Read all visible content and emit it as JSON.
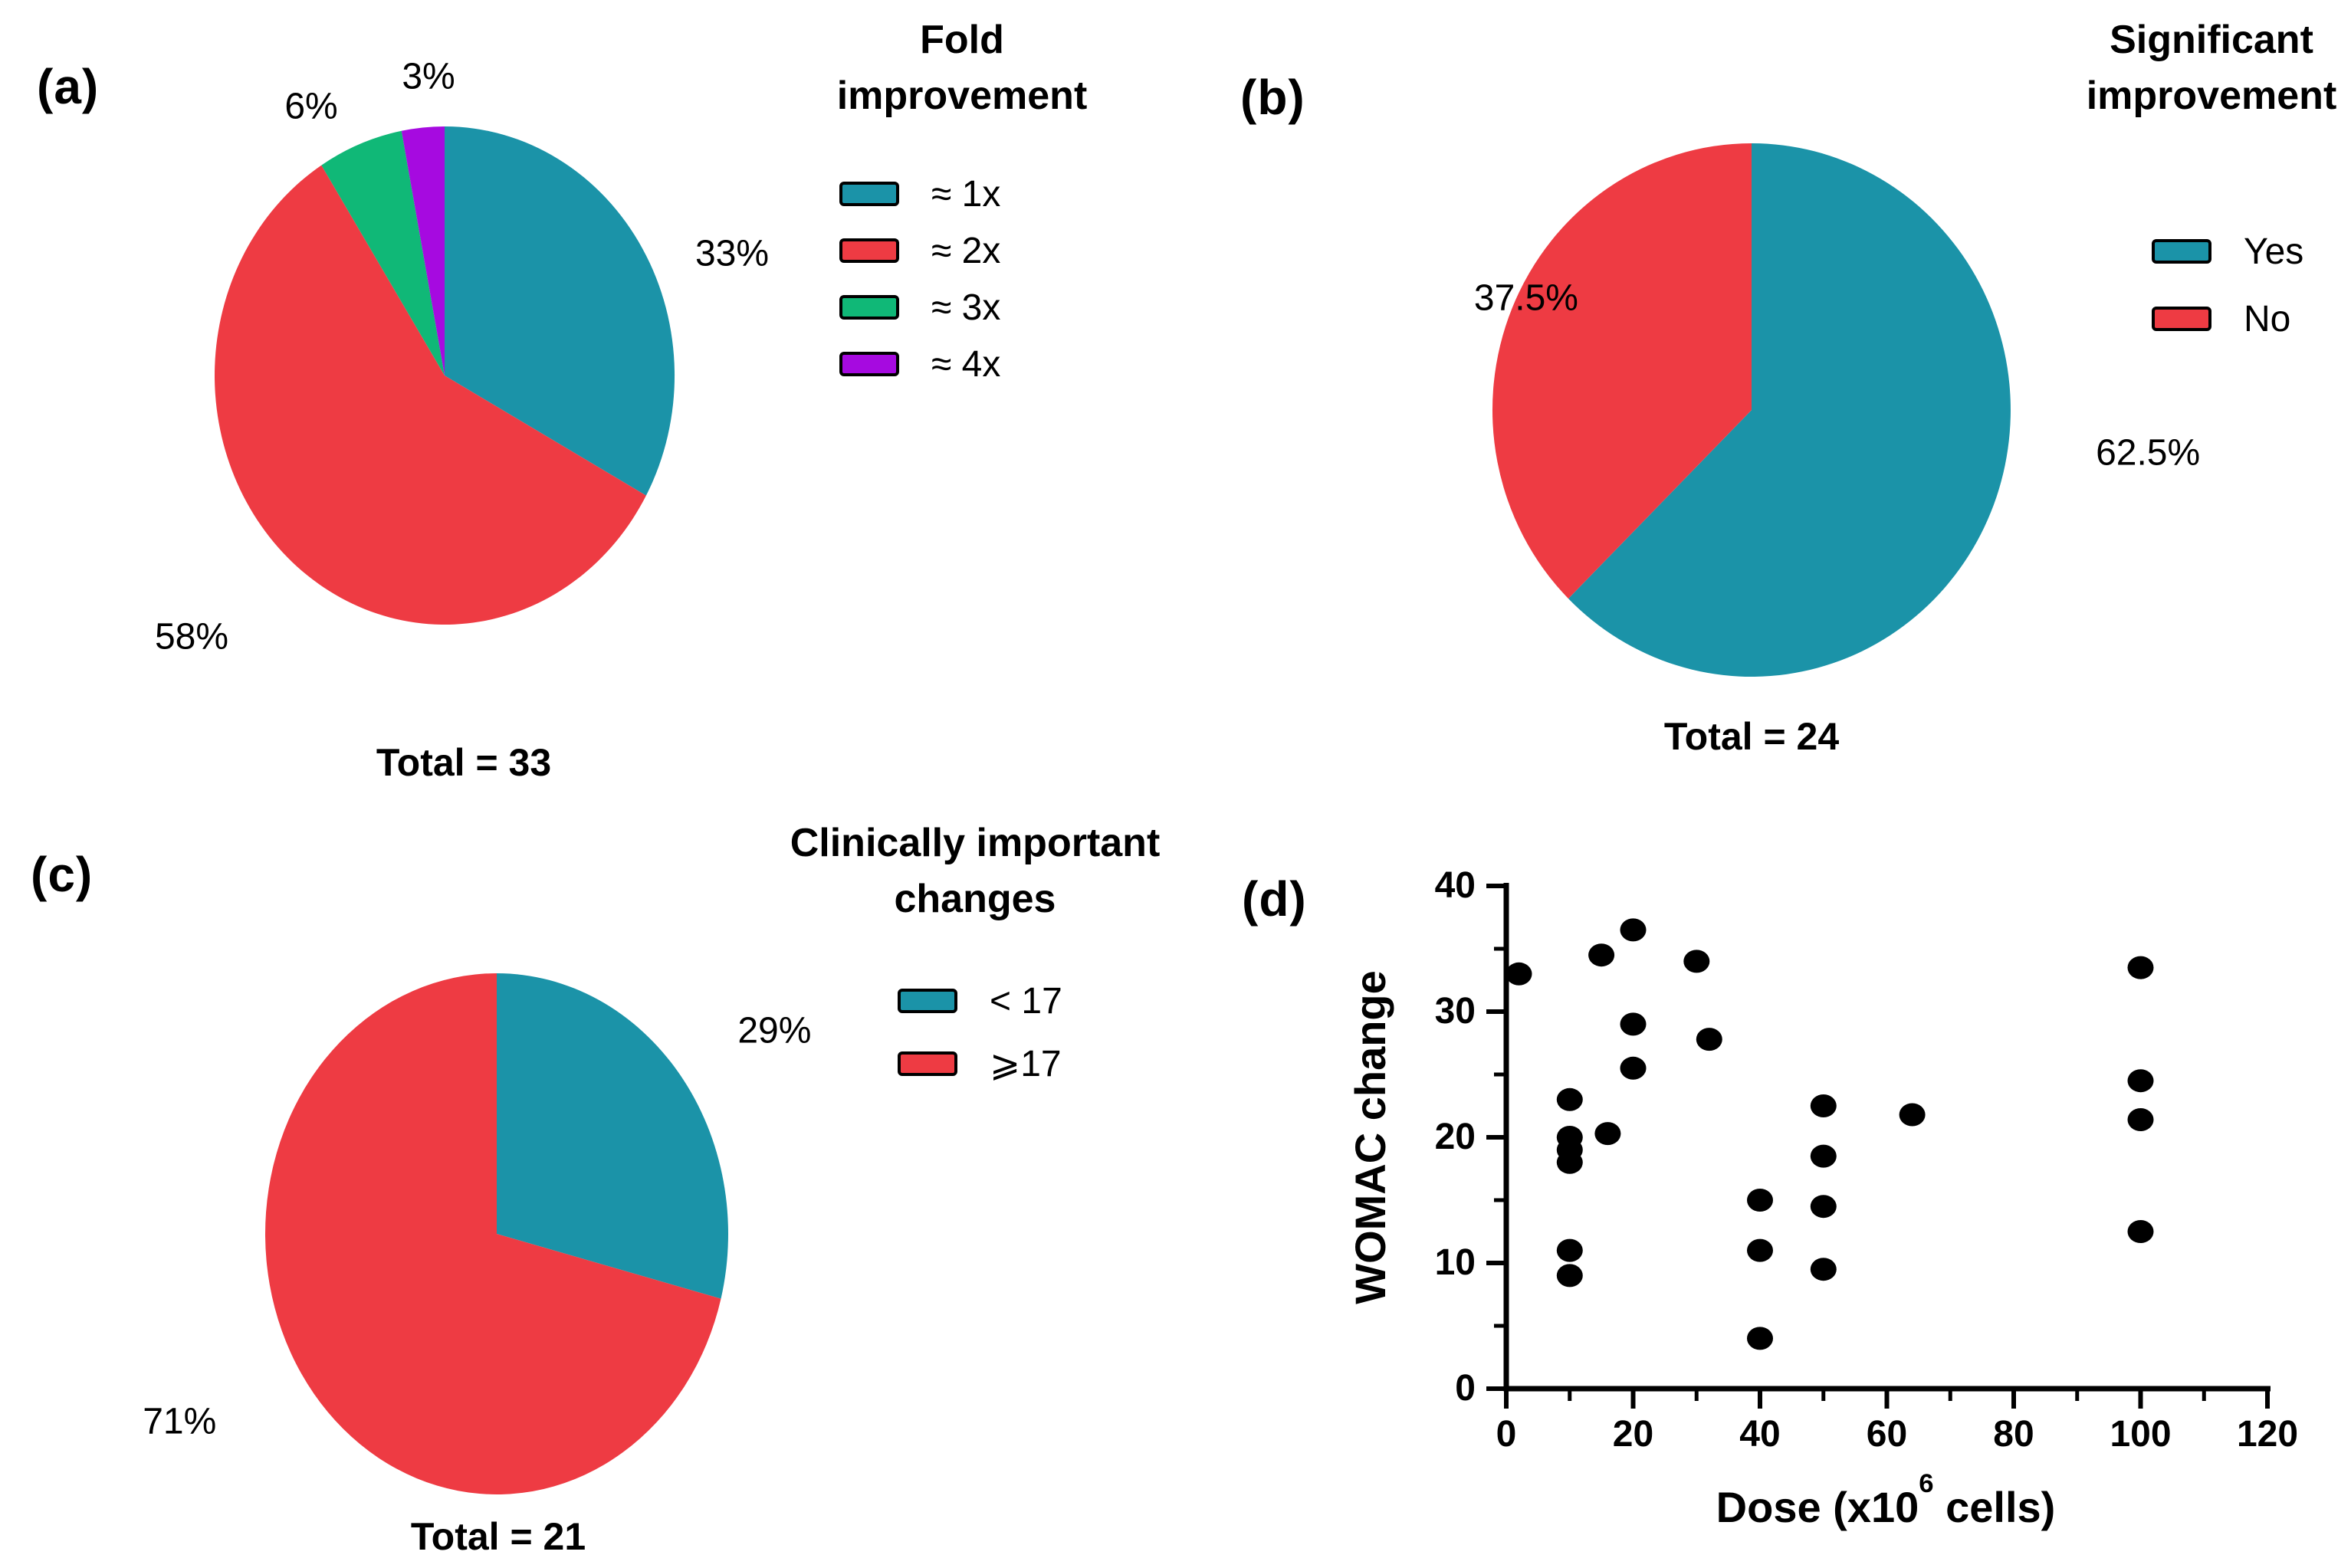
{
  "figure_background": "#ffffff",
  "palette": {
    "teal": "#1b93a8",
    "red": "#ee3b43",
    "green": "#10b877",
    "purple": "#a60ae0",
    "black": "#000000"
  },
  "chart_data": [
    {
      "id": "a",
      "panel_label": "(a)",
      "type": "pie",
      "legend_title": "Fold improvement",
      "legend_title_lines": [
        "Fold",
        "improvement"
      ],
      "legend_position": "top-right",
      "total_label": "Total = 33",
      "total": 33,
      "slices": [
        {
          "legend": "≈ 1x",
          "value": 33,
          "label": "33%",
          "color": "#1b93a8"
        },
        {
          "legend": "≈ 2x",
          "value": 58,
          "label": "58%",
          "color": "#ee3b43"
        },
        {
          "legend": "≈ 3x",
          "value": 6,
          "label": "6%",
          "color": "#10b877"
        },
        {
          "legend": "≈ 4x",
          "value": 3,
          "label": "3%",
          "color": "#a60ae0"
        }
      ]
    },
    {
      "id": "b",
      "panel_label": "(b)",
      "type": "pie",
      "legend_title": "Significant improvement",
      "legend_title_lines": [
        "Significant",
        "improvement"
      ],
      "legend_position": "top-right",
      "total_label": "Total = 24",
      "total": 24,
      "slices": [
        {
          "legend": "Yes",
          "value": 62.5,
          "label": "62.5%",
          "color": "#1b93a8"
        },
        {
          "legend": "No",
          "value": 37.5,
          "label": "37.5%",
          "color": "#ee3b43"
        }
      ]
    },
    {
      "id": "c",
      "panel_label": "(c)",
      "type": "pie",
      "legend_title": "Clinically important changes",
      "legend_title_lines": [
        "Clinically important",
        "changes"
      ],
      "legend_position": "top-right",
      "total_label": "Total = 21",
      "total": 21,
      "slices": [
        {
          "legend": "< 17",
          "value": 29,
          "label": "29%",
          "color": "#1b93a8"
        },
        {
          "legend": "⩾17",
          "value": 71,
          "label": "71%",
          "color": "#ee3b43"
        }
      ]
    },
    {
      "id": "d",
      "panel_label": "(d)",
      "type": "scatter",
      "xlabel": "Dose (x10^6 cells)",
      "xlabel_parts": [
        "Dose (x10",
        "6",
        " cells)"
      ],
      "ylabel": "WOMAC change",
      "xlim": [
        0,
        120
      ],
      "ylim": [
        0,
        40
      ],
      "x_major_ticks": [
        0,
        20,
        40,
        60,
        80,
        100,
        120
      ],
      "x_minor_ticks": [
        10,
        30,
        50,
        70,
        90,
        110
      ],
      "y_major_ticks": [
        0,
        10,
        20,
        30,
        40
      ],
      "y_minor_ticks": [
        5,
        15,
        25,
        35
      ],
      "grid": false,
      "marker": "filled-black-dot",
      "marker_color": "#000000",
      "points": [
        [
          2,
          33
        ],
        [
          10,
          23
        ],
        [
          10,
          20
        ],
        [
          10,
          19
        ],
        [
          10,
          18
        ],
        [
          10,
          11
        ],
        [
          10,
          9
        ],
        [
          15,
          34.5
        ],
        [
          16,
          20.3
        ],
        [
          20,
          36.5
        ],
        [
          20,
          29
        ],
        [
          20,
          25.5
        ],
        [
          30,
          34
        ],
        [
          32,
          27.8
        ],
        [
          40,
          15
        ],
        [
          40,
          11
        ],
        [
          40,
          4
        ],
        [
          50,
          22.5
        ],
        [
          50,
          18.5
        ],
        [
          50,
          14.5
        ],
        [
          50,
          9.5
        ],
        [
          64,
          21.8
        ],
        [
          100,
          33.5
        ],
        [
          100,
          24.5
        ],
        [
          100,
          21.4
        ],
        [
          100,
          12.5
        ]
      ]
    }
  ]
}
